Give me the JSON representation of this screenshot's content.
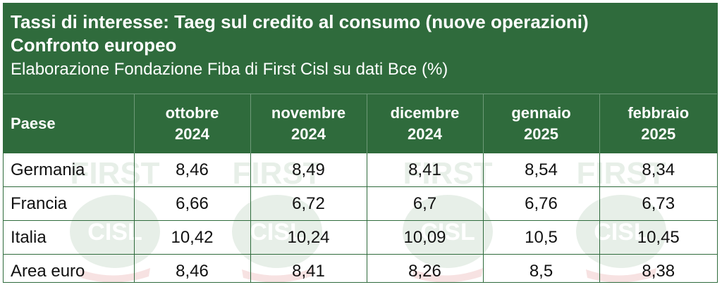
{
  "header": {
    "title_line1": "Tassi di interesse: Taeg sul credito al consumo (nuove operazioni)",
    "title_line2": "Confronto europeo",
    "subtitle": "Elaborazione Fondazione Fiba di First Cisl su dati Bce (%)"
  },
  "watermark": {
    "word_top": "FIRST",
    "word_logo": "CISL"
  },
  "colors": {
    "header_green": "#2f6b3c",
    "watermark_green": "#e7efe8",
    "watermark_red": "#f7e2e2"
  },
  "chart_data": {
    "type": "table",
    "title": "Tassi di interesse: Taeg sul credito al consumo (nuove operazioni) Confronto europeo",
    "subtitle": "Elaborazione Fondazione Fiba di First Cisl su dati Bce (%)",
    "columns": [
      {
        "line1": "Paese",
        "line2": ""
      },
      {
        "line1": "ottobre",
        "line2": "2024"
      },
      {
        "line1": "novembre",
        "line2": "2024"
      },
      {
        "line1": "dicembre",
        "line2": "2024"
      },
      {
        "line1": "gennaio",
        "line2": "2025"
      },
      {
        "line1": "febbraio",
        "line2": "2025"
      }
    ],
    "rows": [
      {
        "paese": "Germania",
        "values": [
          "8,46",
          "8,49",
          "8,41",
          "8,54",
          "8,34"
        ]
      },
      {
        "paese": "Francia",
        "values": [
          "6,66",
          "6,72",
          "6,7",
          "6,76",
          "6,73"
        ]
      },
      {
        "paese": "Italia",
        "values": [
          "10,42",
          "10,24",
          "10,09",
          "10,5",
          "10,45"
        ]
      },
      {
        "paese": "Area euro",
        "values": [
          "8,46",
          "8,41",
          "8,26",
          "8,5",
          "8,38"
        ]
      }
    ]
  }
}
